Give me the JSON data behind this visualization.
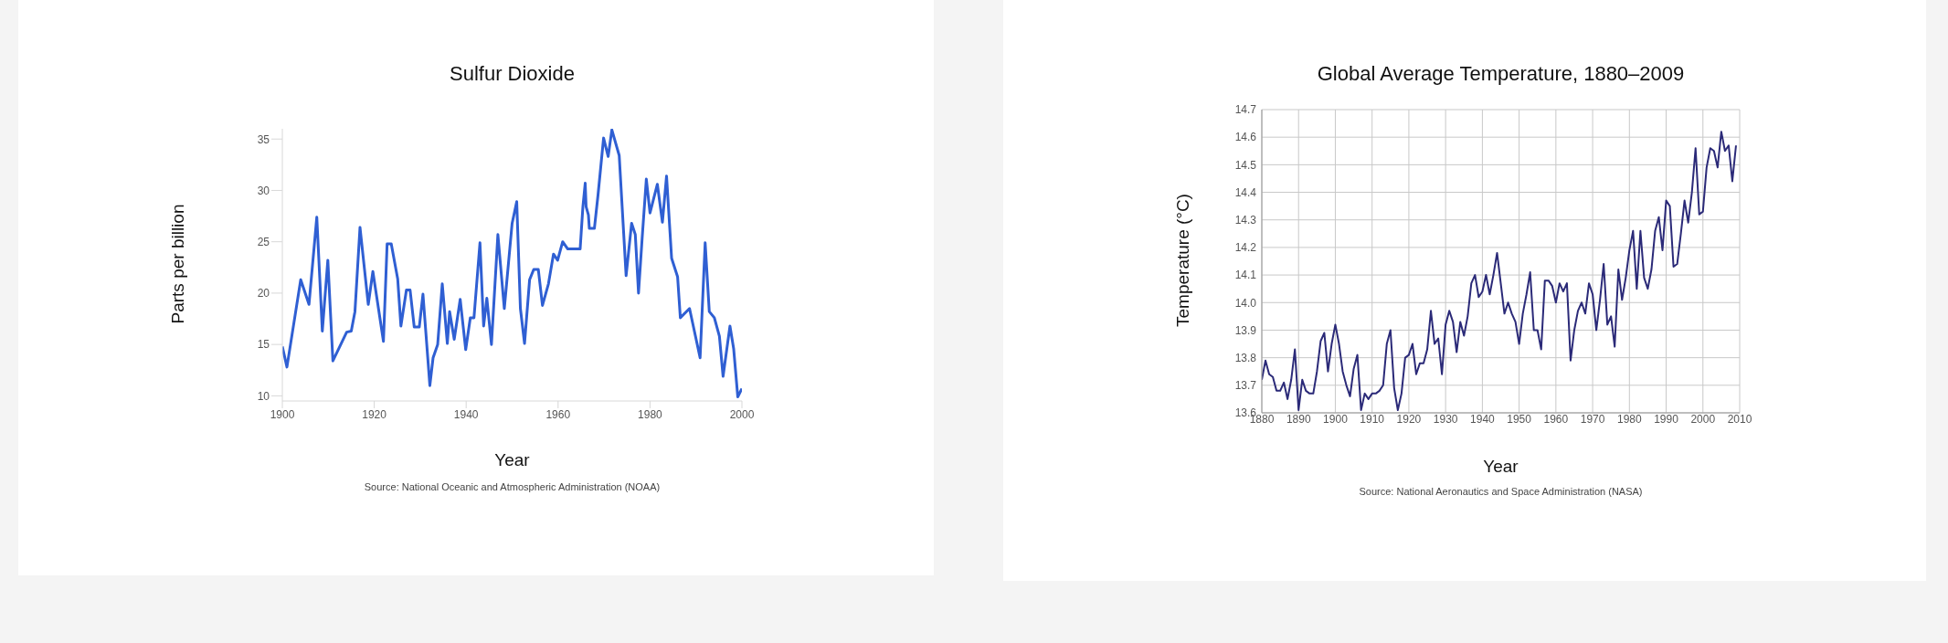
{
  "chart_data": [
    {
      "type": "line",
      "title": "Sulfur Dioxide",
      "xlabel": "Year",
      "ylabel": "Parts per billion",
      "annotations": [
        "Source: National Oceanic and Atmospheric Administration (NOAA)"
      ],
      "grid": false,
      "x": [
        1900,
        1901,
        1904,
        1905.8,
        1907.5,
        1908.7,
        1909.9,
        1911,
        1914,
        1915,
        1915.8,
        1916.9,
        1918.7,
        1919.7,
        1922,
        1922.8,
        1923.7,
        1925.1,
        1925.8,
        1927,
        1927.8,
        1928.7,
        1929.8,
        1930.6,
        1932.1,
        1932.8,
        1933.8,
        1934.8,
        1935.9,
        1936.4,
        1937.4,
        1938.7,
        1939.9,
        1940.9,
        1941.7,
        1943,
        1943.8,
        1944.5,
        1945.5,
        1946.9,
        1948.3,
        1950,
        1951,
        1951.8,
        1952.7,
        1953.8,
        1954.7,
        1955.7,
        1956.6,
        1957.9,
        1959,
        1959.9,
        1961,
        1962.1,
        1964.8,
        1965.4,
        1965.9,
        1966.1,
        1966.6,
        1966.8,
        1967.9,
        1968.7,
        1969.9,
        1970.9,
        1971.7,
        1973.3,
        1974.8,
        1976,
        1976.8,
        1977.5,
        1978.3,
        1979.2,
        1980,
        1981.6,
        1982.7,
        1983.6,
        1984.7,
        1986,
        1986.6,
        1988.6,
        1990.9,
        1992,
        1992.9,
        1994,
        1995.1,
        1995.9,
        1997.4,
        1998.2,
        1999.1,
        2000
      ],
      "series": [
        {
          "color": "#2f5fd3",
          "values": [
            14.8,
            12.8,
            21.3,
            18.9,
            27.4,
            16.3,
            23.2,
            13.4,
            16.2,
            16.3,
            18.2,
            26.4,
            18.9,
            22.1,
            15.3,
            24.8,
            24.8,
            21.4,
            16.8,
            20.3,
            20.3,
            16.7,
            16.7,
            19.9,
            11.0,
            13.7,
            15.0,
            20.9,
            15.1,
            18.2,
            15.5,
            19.4,
            14.5,
            17.6,
            17.6,
            24.9,
            16.8,
            19.5,
            15.0,
            25.7,
            18.5,
            26.8,
            28.9,
            18.5,
            15.1,
            21.3,
            22.3,
            22.3,
            18.8,
            20.9,
            23.8,
            23.2,
            25.0,
            24.3,
            24.3,
            28.4,
            30.7,
            28.4,
            27.6,
            26.3,
            26.3,
            29.6,
            35.1,
            33.3,
            35.9,
            33.4,
            21.7,
            26.8,
            25.7,
            20.0,
            25.4,
            31.1,
            27.8,
            30.6,
            26.9,
            31.4,
            23.4,
            21.6,
            17.6,
            18.5,
            13.7,
            24.9,
            18.2,
            17.6,
            15.8,
            11.9,
            16.8,
            14.6,
            9.9,
            10.7
          ]
        }
      ],
      "xlim": [
        1900,
        2000
      ],
      "xticks": [
        1900,
        1920,
        1940,
        1960,
        1980,
        2000
      ],
      "ylim": [
        9.5,
        36
      ],
      "yticks": [
        10,
        15,
        20,
        25,
        30,
        35
      ]
    },
    {
      "type": "line",
      "title": "Global Average Temperature, 1880–2009",
      "xlabel": "Year",
      "ylabel": "Temperature (°C)",
      "annotations": [
        "Source: National Aeronautics and Space Administration (NASA)"
      ],
      "grid": true,
      "x": [
        1880,
        1881,
        1882,
        1883,
        1884,
        1885,
        1886,
        1887,
        1888,
        1889,
        1890,
        1891,
        1892,
        1893,
        1894,
        1895,
        1896,
        1897,
        1898,
        1899,
        1900,
        1901,
        1902,
        1903,
        1904,
        1905,
        1906,
        1907,
        1908,
        1909,
        1910,
        1911,
        1912,
        1913,
        1914,
        1915,
        1916,
        1917,
        1918,
        1919,
        1920,
        1921,
        1922,
        1923,
        1924,
        1925,
        1926,
        1927,
        1928,
        1929,
        1930,
        1931,
        1932,
        1933,
        1934,
        1935,
        1936,
        1937,
        1938,
        1939,
        1940,
        1941,
        1942,
        1943,
        1944,
        1945,
        1946,
        1947,
        1948,
        1949,
        1950,
        1951,
        1952,
        1953,
        1954,
        1955,
        1956,
        1957,
        1958,
        1959,
        1960,
        1961,
        1962,
        1963,
        1964,
        1965,
        1966,
        1967,
        1968,
        1969,
        1970,
        1971,
        1972,
        1973,
        1974,
        1975,
        1976,
        1977,
        1978,
        1979,
        1980,
        1981,
        1982,
        1983,
        1984,
        1985,
        1986,
        1987,
        1988,
        1989,
        1990,
        1991,
        1992,
        1993,
        1994,
        1995,
        1996,
        1997,
        1998,
        1999,
        2000,
        2001,
        2002,
        2003,
        2004,
        2005,
        2006,
        2007,
        2008,
        2009
      ],
      "series": [
        {
          "color": "#2b2a78",
          "values": [
            13.72,
            13.79,
            13.74,
            13.73,
            13.68,
            13.68,
            13.71,
            13.65,
            13.72,
            13.83,
            13.61,
            13.72,
            13.68,
            13.67,
            13.67,
            13.75,
            13.86,
            13.89,
            13.75,
            13.85,
            13.92,
            13.85,
            13.75,
            13.7,
            13.66,
            13.76,
            13.81,
            13.61,
            13.67,
            13.65,
            13.67,
            13.67,
            13.68,
            13.7,
            13.85,
            13.9,
            13.69,
            13.61,
            13.67,
            13.8,
            13.81,
            13.85,
            13.74,
            13.78,
            13.78,
            13.83,
            13.97,
            13.85,
            13.87,
            13.74,
            13.92,
            13.97,
            13.93,
            13.82,
            13.93,
            13.88,
            13.95,
            14.07,
            14.1,
            14.02,
            14.04,
            14.1,
            14.03,
            14.1,
            14.18,
            14.07,
            13.96,
            14.0,
            13.96,
            13.93,
            13.85,
            13.96,
            14.03,
            14.11,
            13.9,
            13.9,
            13.83,
            14.08,
            14.08,
            14.06,
            14.0,
            14.07,
            14.04,
            14.07,
            13.79,
            13.9,
            13.97,
            14.0,
            13.96,
            14.07,
            14.03,
            13.9,
            14.01,
            14.14,
            13.92,
            13.95,
            13.84,
            14.12,
            14.01,
            14.09,
            14.19,
            14.26,
            14.05,
            14.26,
            14.09,
            14.05,
            14.12,
            14.26,
            14.31,
            14.19,
            14.37,
            14.35,
            14.13,
            14.14,
            14.25,
            14.37,
            14.29,
            14.4,
            14.56,
            14.32,
            14.33,
            14.49,
            14.56,
            14.55,
            14.49,
            14.62,
            14.55,
            14.57,
            14.44,
            14.57
          ]
        }
      ],
      "xlim": [
        1880,
        2010
      ],
      "xticks": [
        1880,
        1890,
        1900,
        1910,
        1920,
        1930,
        1940,
        1950,
        1960,
        1970,
        1980,
        1990,
        2000,
        2010
      ],
      "ylim": [
        13.6,
        14.7
      ],
      "yticks": [
        {
          "value": 13.6,
          "label": "13.6"
        },
        {
          "value": 13.7,
          "label": "13.7"
        },
        {
          "value": 13.8,
          "label": "13.8"
        },
        {
          "value": 13.9,
          "label": "13.9"
        },
        {
          "value": 14.0,
          "label": "14.0"
        },
        {
          "value": 14.1,
          "label": "14.1"
        },
        {
          "value": 14.2,
          "label": "14.2"
        },
        {
          "value": 14.3,
          "label": "14.3"
        },
        {
          "value": 14.4,
          "label": "14.4"
        },
        {
          "value": 14.5,
          "label": "14.5"
        },
        {
          "value": 14.6,
          "label": "14.6"
        },
        {
          "value": 14.7,
          "label": "14.7"
        }
      ]
    }
  ]
}
